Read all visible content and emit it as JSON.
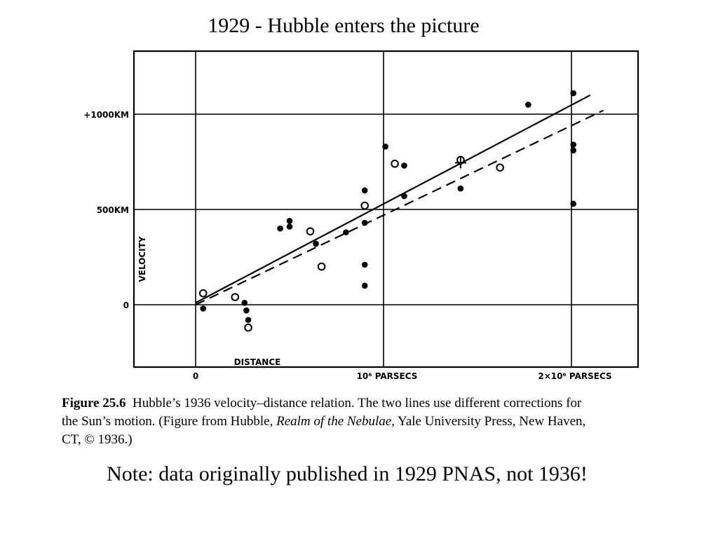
{
  "title": "1929 - Hubble enters the picture",
  "caption": {
    "label": "Figure 25.6",
    "text_before": "Hubble’s 1936 velocity–distance relation. The two lines use different corrections for the Sun’s motion. (Figure from Hubble, ",
    "italic": "Realm of the Nebulae",
    "text_after": ", Yale University Press, New Haven, CT, © 1936.)"
  },
  "note": "Note: data originally published in 1929 PNAS, not 1936!",
  "chart_data": {
    "type": "scatter",
    "xlabel": "DISTANCE",
    "ylabel": "VELOCITY",
    "x_unit": "parsecs",
    "y_unit": "km/s",
    "xlim": [
      -320000,
      2320000
    ],
    "ylim": [
      -330000,
      1330
    ],
    "x_ticks": [
      {
        "value": 0,
        "label": "0"
      },
      {
        "value": 1000000,
        "label": "10⁶ PARSECS"
      },
      {
        "value": 2000000,
        "label": "2×10⁶ PARSECS"
      }
    ],
    "y_ticks": [
      {
        "value": 0,
        "label": "0"
      },
      {
        "value": 500,
        "label": "500KM"
      },
      {
        "value": 1000,
        "label": "+1000KM"
      }
    ],
    "grid": true,
    "series": [
      {
        "marker": "filled",
        "points": [
          [
            40000,
            -20
          ],
          [
            210000,
            40
          ],
          [
            260000,
            10
          ],
          [
            270000,
            -30
          ],
          [
            280000,
            -80
          ],
          [
            450000,
            400
          ],
          [
            500000,
            410
          ],
          [
            500000,
            440
          ],
          [
            640000,
            320
          ],
          [
            800000,
            380
          ],
          [
            900000,
            600
          ],
          [
            900000,
            430
          ],
          [
            900000,
            210
          ],
          [
            900000,
            100
          ],
          [
            1010000,
            830
          ],
          [
            1110000,
            730
          ],
          [
            1110000,
            570
          ],
          [
            1410000,
            750
          ],
          [
            1410000,
            610
          ],
          [
            1770000,
            1050
          ],
          [
            2010000,
            1110
          ],
          [
            2010000,
            840
          ],
          [
            2010000,
            810
          ],
          [
            2010000,
            530
          ]
        ]
      },
      {
        "marker": "open",
        "points": [
          [
            40000,
            60
          ],
          [
            210000,
            40
          ],
          [
            280000,
            -120
          ],
          [
            610000,
            385
          ],
          [
            670000,
            200
          ],
          [
            900000,
            520
          ],
          [
            1060000,
            740
          ],
          [
            1410000,
            760
          ],
          [
            1620000,
            720
          ]
        ]
      },
      {
        "marker": "cross",
        "points": [
          [
            1410000,
            745
          ]
        ]
      }
    ],
    "lines": [
      {
        "style": "solid",
        "from": [
          0,
          10
        ],
        "to": [
          2100000,
          1100
        ]
      },
      {
        "style": "dashed",
        "from": [
          0,
          0
        ],
        "to": [
          2170000,
          1020
        ]
      }
    ]
  }
}
